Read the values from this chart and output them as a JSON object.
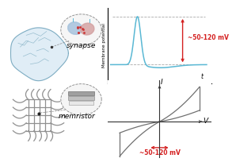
{
  "bg_color": "#ffffff",
  "synapse_label": "synapse",
  "memristor_label": "memristor",
  "top_annotation": "~50-120 mV",
  "bottom_annotation": "~50-120 mV",
  "membrane_ylabel": "Membrane potential",
  "membrane_xlabel": "t",
  "iv_xlabel": "V",
  "iv_ylabel": "I",
  "arrow_color": "#d42020",
  "curve_color": "#5ab8d4",
  "iv_curve_color": "#707070",
  "dashed_color": "#aaaaaa",
  "brain_fill": "#c8dff0",
  "brain_line": "#7aaabf",
  "annotation_fontsize": 5.5,
  "label_fontsize": 6.5,
  "axis_label_fontsize": 4.5,
  "ylabel_fontsize": 4.0
}
